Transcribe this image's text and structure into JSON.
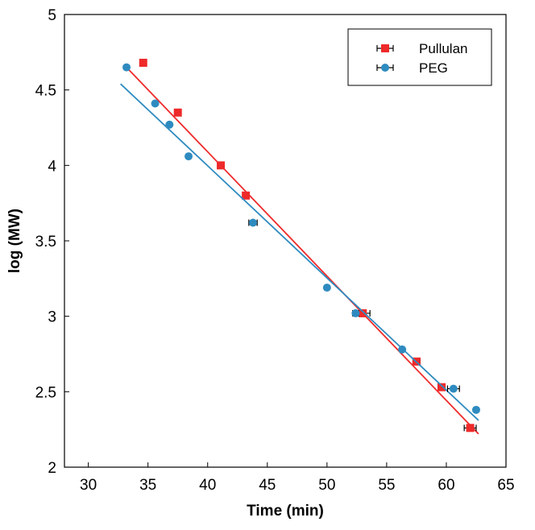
{
  "chart_data": {
    "type": "scatter",
    "xlabel": "Time (min)",
    "ylabel": "log (MW)",
    "xlim": [
      28,
      65
    ],
    "ylim": [
      2,
      5
    ],
    "xticks": [
      30,
      35,
      40,
      45,
      50,
      55,
      60,
      65
    ],
    "yticks": [
      2,
      2.5,
      3,
      3.5,
      4,
      4.5,
      5
    ],
    "xtick_labels": [
      "30",
      "35",
      "40",
      "45",
      "50",
      "55",
      "60",
      "65"
    ],
    "ytick_labels": [
      "2",
      "2.5",
      "3",
      "3.5",
      "4",
      "4.5",
      "5"
    ],
    "legend_position": "top-right",
    "series": [
      {
        "name": "Pullulan",
        "marker": "square",
        "color": "#ee2a2a",
        "points": [
          {
            "x": 34.6,
            "y": 4.68,
            "xerr": 0
          },
          {
            "x": 37.5,
            "y": 4.35,
            "xerr": 0
          },
          {
            "x": 41.1,
            "y": 4.0,
            "xerr": 0
          },
          {
            "x": 43.2,
            "y": 3.8,
            "xerr": 0
          },
          {
            "x": 53.0,
            "y": 3.02,
            "xerr": 0.6
          },
          {
            "x": 57.5,
            "y": 2.7,
            "xerr": 0.3
          },
          {
            "x": 59.6,
            "y": 2.53,
            "xerr": 0.3
          },
          {
            "x": 62.0,
            "y": 2.26,
            "xerr": 0.5
          }
        ],
        "fit": {
          "x": [
            33.2,
            62.7
          ],
          "y": [
            4.65,
            2.22
          ]
        }
      },
      {
        "name": "PEG",
        "marker": "circle",
        "color": "#2e8bc0",
        "points": [
          {
            "x": 33.2,
            "y": 4.65,
            "xerr": 0
          },
          {
            "x": 35.6,
            "y": 4.41,
            "xerr": 0
          },
          {
            "x": 36.8,
            "y": 4.27,
            "xerr": 0
          },
          {
            "x": 38.4,
            "y": 4.06,
            "xerr": 0
          },
          {
            "x": 43.8,
            "y": 3.62,
            "xerr": 0.35
          },
          {
            "x": 50.0,
            "y": 3.19,
            "xerr": 0
          },
          {
            "x": 52.4,
            "y": 3.02,
            "xerr": 0.25
          },
          {
            "x": 56.3,
            "y": 2.78,
            "xerr": 0
          },
          {
            "x": 60.6,
            "y": 2.52,
            "xerr": 0.5
          },
          {
            "x": 62.5,
            "y": 2.38,
            "xerr": 0
          }
        ],
        "fit": {
          "x": [
            32.7,
            62.7
          ],
          "y": [
            4.54,
            2.31
          ]
        }
      }
    ]
  }
}
